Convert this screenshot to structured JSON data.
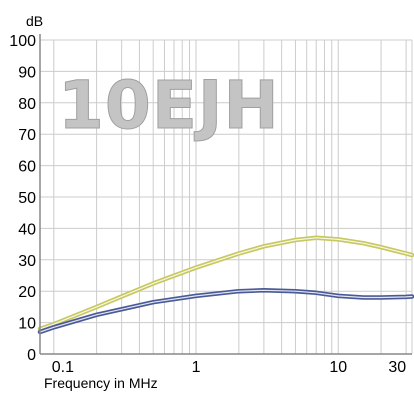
{
  "chart_data": {
    "type": "line",
    "title": "",
    "xlabel": "Frequency in MHz",
    "ylabel": "dB",
    "x_scale": "log",
    "xlim": [
      0.08,
      33
    ],
    "ylim": [
      0,
      100
    ],
    "x_ticks": [
      {
        "value": 0.1,
        "label": "0.1"
      },
      {
        "value": 1,
        "label": "1"
      },
      {
        "value": 10,
        "label": "10"
      },
      {
        "value": 30,
        "label": "30"
      }
    ],
    "y_ticks": [
      {
        "value": 0,
        "label": "0"
      },
      {
        "value": 10,
        "label": "10"
      },
      {
        "value": 20,
        "label": "20"
      },
      {
        "value": 30,
        "label": "30"
      },
      {
        "value": 40,
        "label": "40"
      },
      {
        "value": 50,
        "label": "50"
      },
      {
        "value": 60,
        "label": "60"
      },
      {
        "value": 70,
        "label": "70"
      },
      {
        "value": 80,
        "label": "80"
      },
      {
        "value": 90,
        "label": "90"
      },
      {
        "value": 100,
        "label": "100"
      }
    ],
    "grid": true,
    "legend": "none",
    "series": [
      {
        "color": "#c8c860",
        "x": [
          0.08,
          0.1,
          0.2,
          0.5,
          1,
          2,
          3,
          5,
          7,
          10,
          15,
          20,
          30,
          33
        ],
        "y": [
          8,
          9.5,
          15,
          22.5,
          27.5,
          32,
          34.3,
          36.3,
          37,
          36.5,
          35.3,
          34,
          32,
          31.5
        ]
      },
      {
        "color": "#4a5a98",
        "x": [
          0.08,
          0.1,
          0.2,
          0.5,
          1,
          2,
          3,
          5,
          7,
          10,
          15,
          20,
          30,
          33
        ],
        "y": [
          7,
          8.5,
          12.5,
          16.5,
          18.5,
          20,
          20.3,
          20,
          19.5,
          18.5,
          18,
          18,
          18.2,
          18.3
        ]
      }
    ]
  },
  "watermark": {
    "text": "10EJH",
    "color": "#c4c4c4"
  },
  "colors": {
    "grid": "#cccccc",
    "axis": "#888888"
  }
}
